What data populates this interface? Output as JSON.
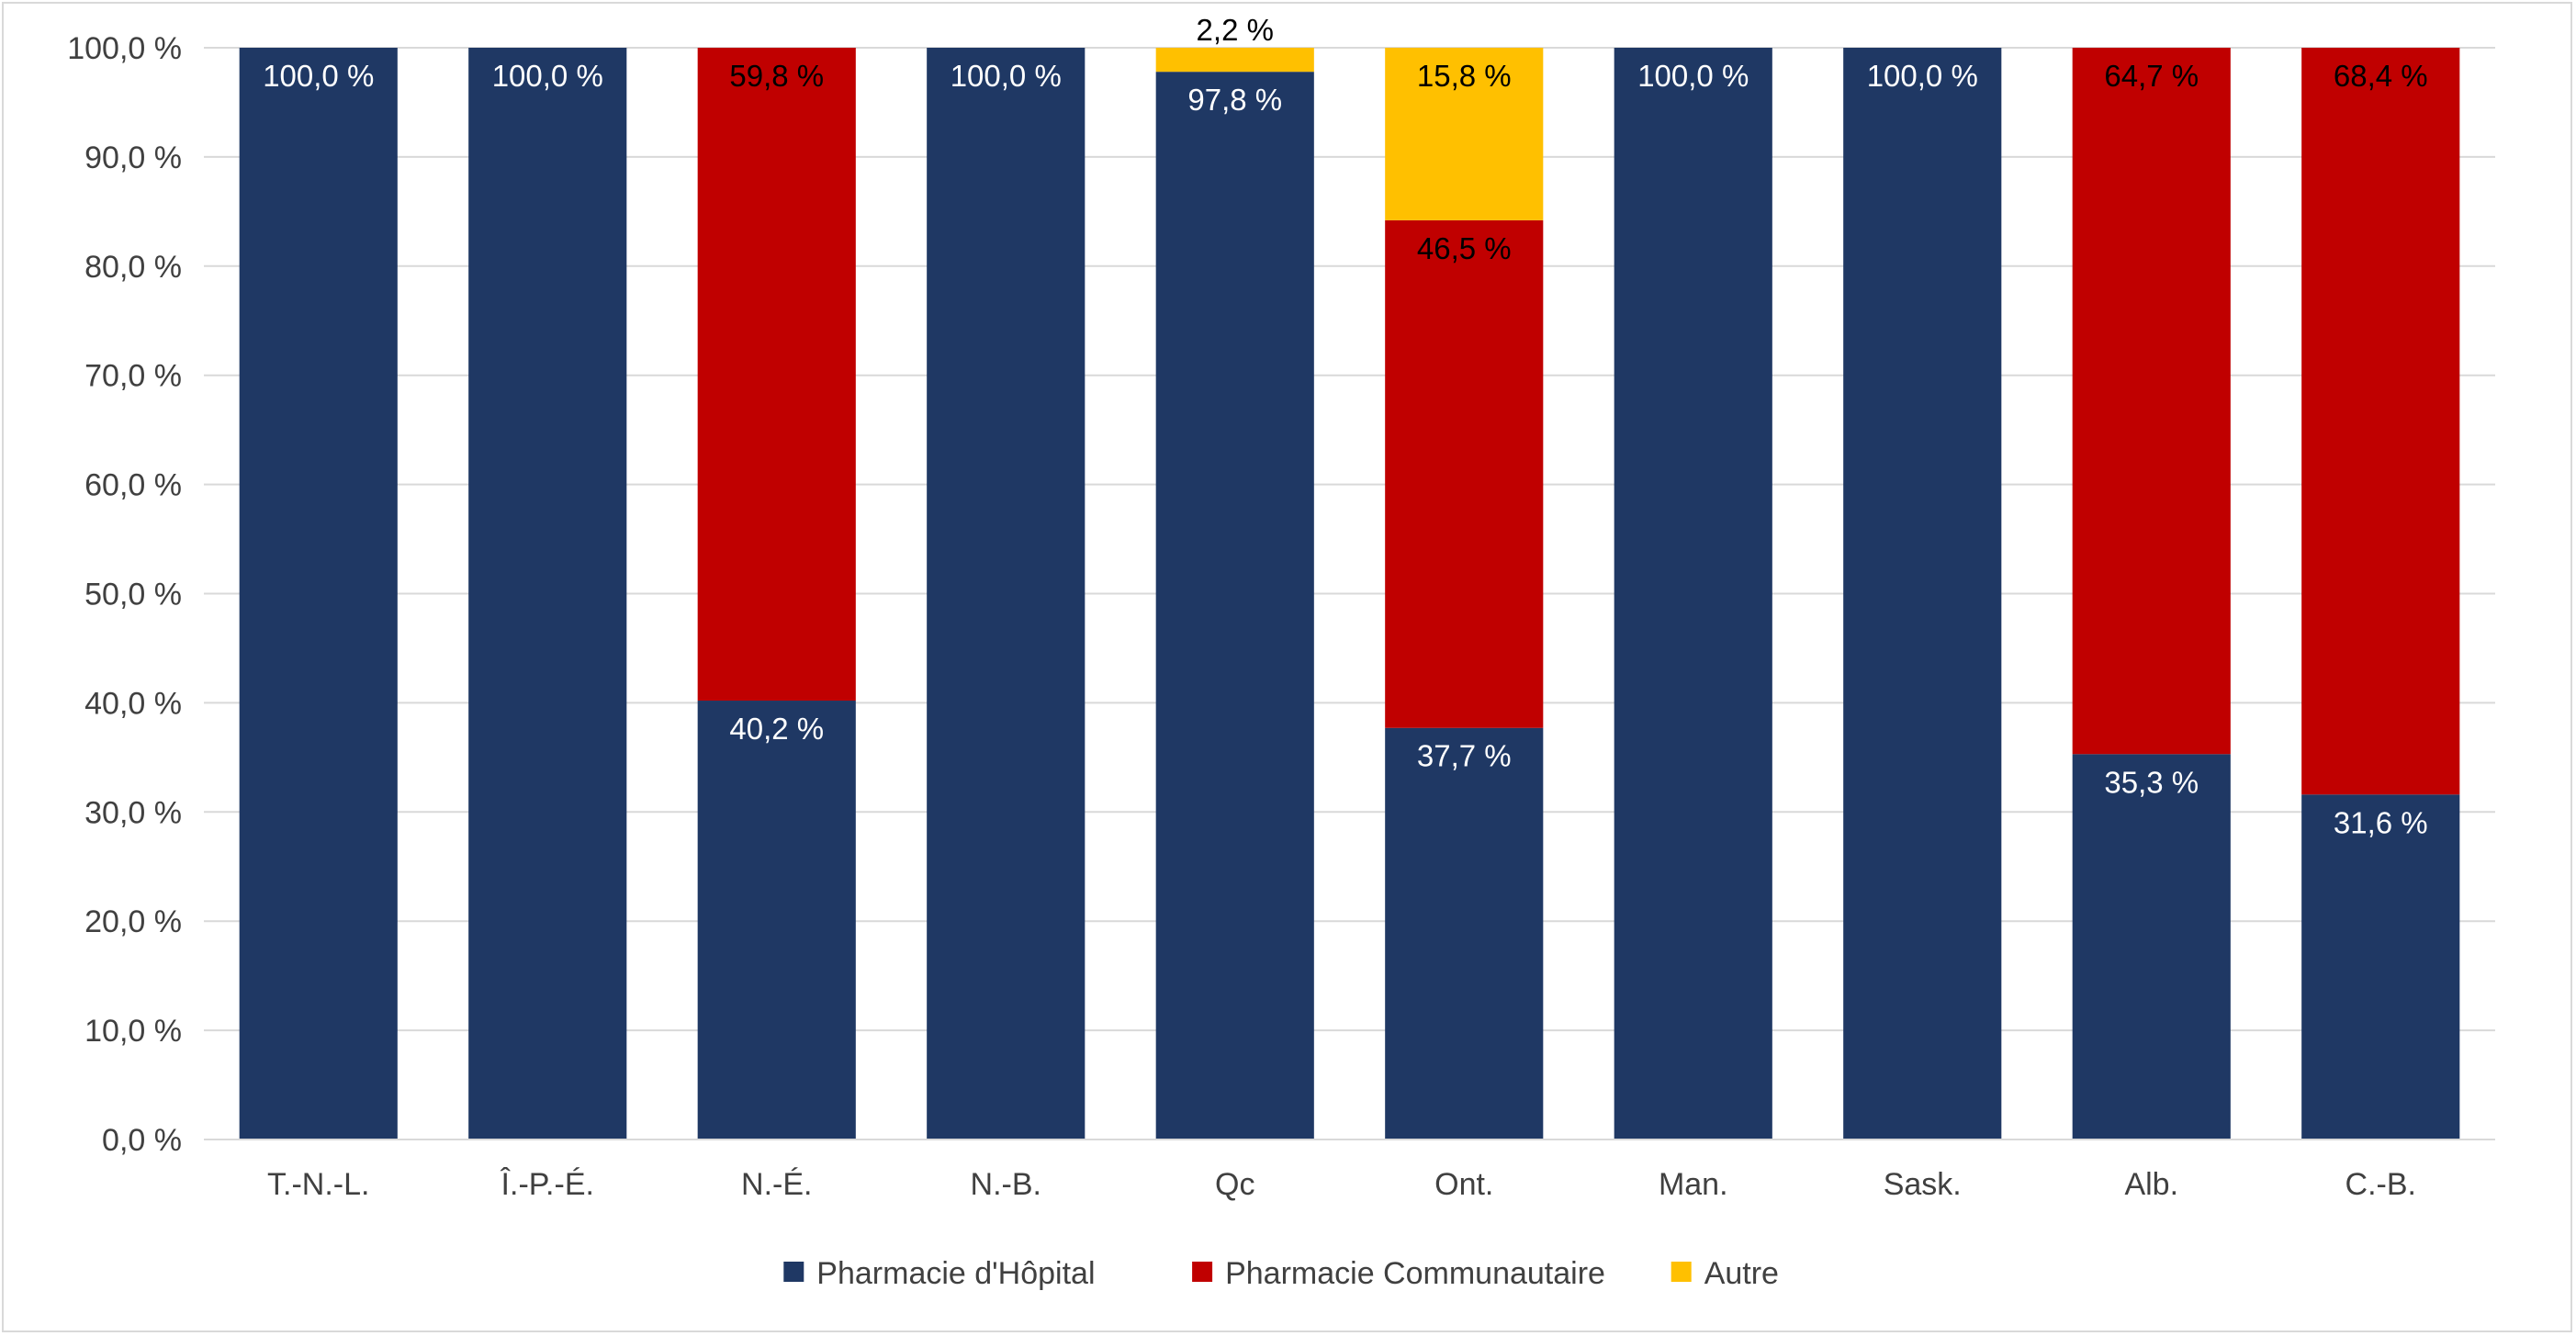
{
  "chart_data": {
    "type": "bar",
    "stacked": true,
    "categories": [
      "T.-N.-L.",
      "Î.-P.-É.",
      "N.-É.",
      "N.-B.",
      "Qc",
      "Ont.",
      "Man.",
      "Sask.",
      "Alb.",
      "C.-B."
    ],
    "series": [
      {
        "name": "Pharmacie d'Hôpital",
        "color": "#1f3864",
        "values": [
          100.0,
          100.0,
          40.2,
          100.0,
          97.8,
          37.7,
          100.0,
          100.0,
          35.3,
          31.6
        ],
        "labels": [
          "100,0 %",
          "100,0 %",
          "40,2 %",
          "100,0 %",
          "97,8 %",
          "37,7 %",
          "100,0 %",
          "100,0 %",
          "35,3 %",
          "31,6 %"
        ],
        "label_color": "#ffffff"
      },
      {
        "name": "Pharmacie Communautaire",
        "color": "#c00000",
        "values": [
          0,
          0,
          59.8,
          0,
          0,
          46.5,
          0,
          0,
          64.7,
          68.4
        ],
        "labels": [
          "",
          "",
          "59,8 %",
          "",
          "",
          "46,5 %",
          "",
          "",
          "64,7 %",
          "68,4 %"
        ],
        "label_color": "#000000"
      },
      {
        "name": "Autre",
        "color": "#ffc000",
        "values": [
          0,
          0,
          0,
          0,
          2.2,
          15.8,
          0,
          0,
          0,
          0
        ],
        "labels": [
          "",
          "",
          "",
          "",
          "2,2 %",
          "15,8 %",
          "",
          "",
          "",
          ""
        ],
        "label_color": "#000000"
      }
    ],
    "y_ticks": [
      "0,0 %",
      "10,0 %",
      "20,0 %",
      "30,0 %",
      "40,0 %",
      "50,0 %",
      "60,0 %",
      "70,0 %",
      "80,0 %",
      "90,0 %",
      "100,0 %"
    ],
    "ylim": [
      0,
      100
    ],
    "grid": true,
    "legend_position": "bottom",
    "title": "",
    "xlabel": "",
    "ylabel": ""
  }
}
